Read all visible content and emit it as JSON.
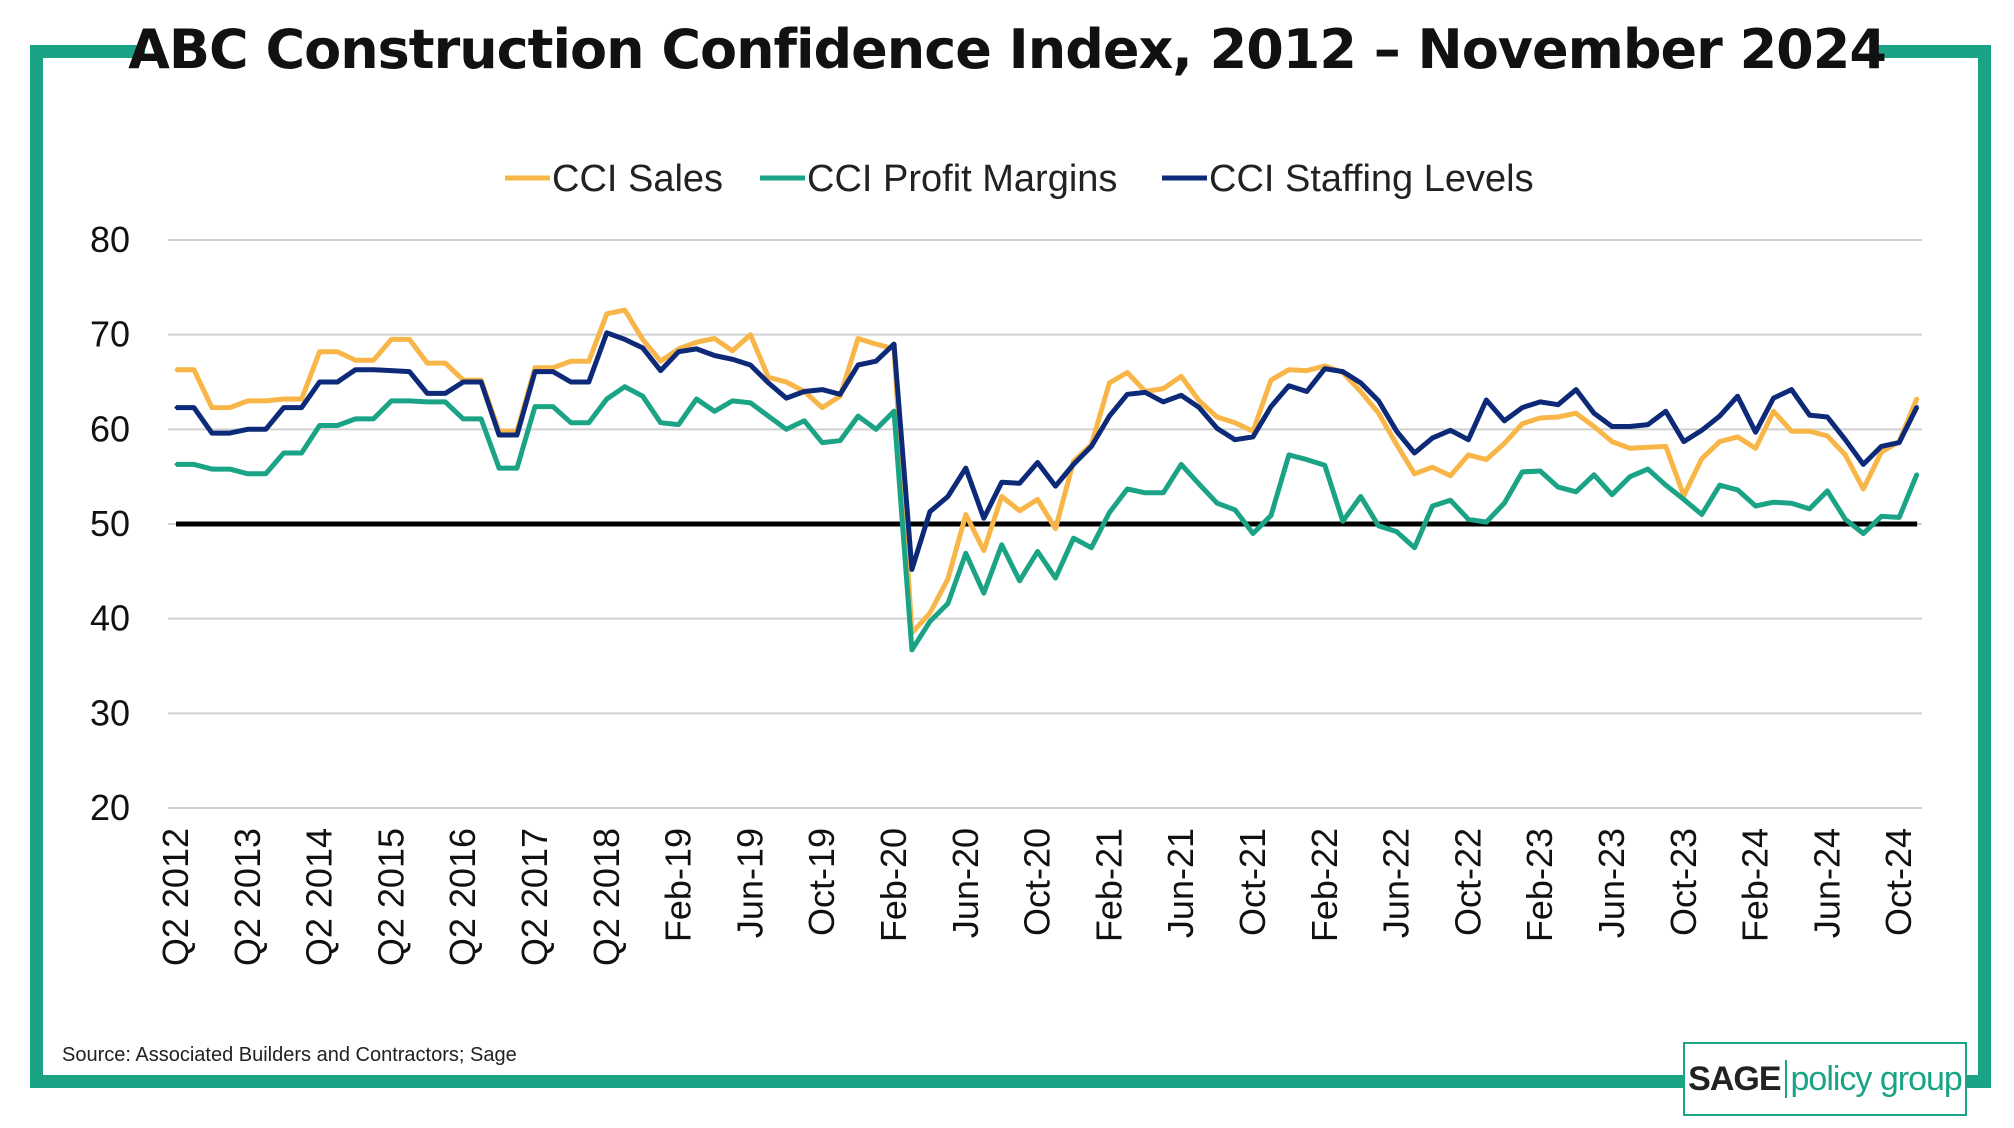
{
  "title": "ABC Construction Confidence Index, 2012 – November 2024",
  "source": "Source: Associated Builders and Contractors; Sage",
  "logo": {
    "text_bold": "SAGE",
    "text_light": "policy group"
  },
  "colors": {
    "frame": "#1BA386",
    "sales": "#F9B648",
    "profit": "#1BA386",
    "staffing": "#0D2A78",
    "reference": "#000000"
  },
  "chart_data": {
    "type": "line",
    "title": "ABC Construction Confidence Index, 2012 – November 2024",
    "xlabel": "",
    "ylabel": "",
    "ylim": [
      20,
      80
    ],
    "yticks": [
      20,
      30,
      40,
      50,
      60,
      70,
      80
    ],
    "grid": "horizontal",
    "legend_position": "top-center",
    "reference_line": 50,
    "x_ticks": [
      {
        "index": 0,
        "label": "Q2 2012"
      },
      {
        "index": 4,
        "label": "Q2 2013"
      },
      {
        "index": 8,
        "label": "Q2 2014"
      },
      {
        "index": 12,
        "label": "Q2 2015"
      },
      {
        "index": 16,
        "label": "Q2 2016"
      },
      {
        "index": 20,
        "label": "Q2 2017"
      },
      {
        "index": 24,
        "label": "Q2 2018"
      },
      {
        "index": 28,
        "label": "Feb-19"
      },
      {
        "index": 32,
        "label": "Jun-19"
      },
      {
        "index": 36,
        "label": "Oct-19"
      },
      {
        "index": 40,
        "label": "Feb-20"
      },
      {
        "index": 44,
        "label": "Jun-20"
      },
      {
        "index": 48,
        "label": "Oct-20"
      },
      {
        "index": 52,
        "label": "Feb-21"
      },
      {
        "index": 56,
        "label": "Jun-21"
      },
      {
        "index": 60,
        "label": "Oct-21"
      },
      {
        "index": 64,
        "label": "Feb-22"
      },
      {
        "index": 68,
        "label": "Jun-22"
      },
      {
        "index": 72,
        "label": "Oct-22"
      },
      {
        "index": 76,
        "label": "Feb-23"
      },
      {
        "index": 80,
        "label": "Jun-23"
      },
      {
        "index": 84,
        "label": "Oct-23"
      },
      {
        "index": 88,
        "label": "Feb-24"
      },
      {
        "index": 92,
        "label": "Jun-24"
      },
      {
        "index": 96,
        "label": "Oct-24"
      }
    ],
    "series": [
      {
        "name": "CCI Sales",
        "color": "#F9B648",
        "values": [
          66.3,
          66.3,
          62.3,
          62.3,
          63,
          63,
          63.2,
          63.2,
          68.2,
          68.2,
          67.3,
          67.3,
          69.5,
          69.5,
          67,
          67,
          65.2,
          65.2,
          59.8,
          59.8,
          66.5,
          66.5,
          67.2,
          67.2,
          72.2,
          72.6,
          69.5,
          67.2,
          68.5,
          69.2,
          69.6,
          68.3,
          70,
          65.5,
          65,
          64,
          62.3,
          63.5,
          69.6,
          69,
          68.5,
          38.5,
          40.6,
          44.2,
          51,
          47.2,
          52.9,
          51.4,
          52.6,
          49.5,
          56.6,
          58.4,
          64.9,
          66,
          64,
          64.3,
          65.6,
          63,
          61.3,
          60.7,
          59.8,
          65.2,
          66.3,
          66.2,
          66.7,
          66,
          64,
          61.7,
          58.4,
          55.3,
          56,
          55.1,
          57.3,
          56.8,
          58.5,
          60.6,
          61.2,
          61.3,
          61.7,
          60.3,
          58.7,
          58,
          58.1,
          58.2,
          53,
          56.9,
          58.7,
          59.2,
          58,
          61.9,
          59.8,
          59.8,
          59.3,
          57.3,
          53.7,
          57.6,
          58.7,
          63.3
        ]
      },
      {
        "name": "CCI Profit Margins",
        "color": "#1BA386",
        "values": [
          56.3,
          56.3,
          55.8,
          55.8,
          55.3,
          55.3,
          57.5,
          57.5,
          60.4,
          60.4,
          61.1,
          61.1,
          63,
          63,
          62.9,
          62.9,
          61.1,
          61.1,
          55.9,
          55.9,
          62.4,
          62.4,
          60.7,
          60.7,
          63.2,
          64.5,
          63.5,
          60.7,
          60.5,
          63.2,
          61.9,
          63,
          62.8,
          61.4,
          60,
          60.9,
          58.6,
          58.8,
          61.4,
          60,
          61.9,
          36.7,
          39.7,
          41.6,
          46.9,
          42.7,
          47.8,
          44,
          47.1,
          44.3,
          48.5,
          47.5,
          51.2,
          53.7,
          53.3,
          53.3,
          56.3,
          54.2,
          52.2,
          51.5,
          49,
          50.9,
          57.3,
          56.8,
          56.2,
          50.3,
          52.9,
          49.8,
          49.2,
          47.5,
          51.9,
          52.5,
          50.5,
          50.2,
          52.2,
          55.5,
          55.6,
          53.9,
          53.4,
          55.2,
          53.1,
          55,
          55.8,
          54.1,
          52.6,
          51,
          54.1,
          53.6,
          51.9,
          52.3,
          52.2,
          51.6,
          53.5,
          50.5,
          49,
          50.8,
          50.7,
          55.3
        ]
      },
      {
        "name": "CCI Staffing Levels",
        "color": "#0D2A78",
        "values": [
          62.3,
          62.3,
          59.6,
          59.6,
          60,
          60,
          62.3,
          62.3,
          65,
          65,
          66.3,
          66.3,
          66.2,
          66.1,
          63.8,
          63.8,
          65,
          65,
          59.4,
          59.4,
          66.1,
          66.1,
          65,
          65,
          70.2,
          69.5,
          68.6,
          66.2,
          68.2,
          68.5,
          67.8,
          67.4,
          66.8,
          64.9,
          63.3,
          64,
          64.2,
          63.7,
          66.8,
          67.2,
          69,
          45.2,
          51.3,
          52.9,
          55.9,
          50.6,
          54.4,
          54.3,
          56.5,
          54,
          56.3,
          58.2,
          61.4,
          63.7,
          63.9,
          62.9,
          63.6,
          62.3,
          60.1,
          58.9,
          59.2,
          62.4,
          64.6,
          64,
          66.4,
          66.1,
          64.9,
          63,
          59.8,
          57.5,
          59.1,
          59.9,
          58.9,
          63.1,
          60.9,
          62.3,
          62.9,
          62.6,
          64.2,
          61.7,
          60.3,
          60.3,
          60.5,
          61.9,
          58.7,
          59.9,
          61.4,
          63.5,
          59.7,
          63.3,
          64.2,
          61.5,
          61.3,
          58.9,
          56.3,
          58.2,
          58.6,
          62.4
        ]
      }
    ]
  }
}
